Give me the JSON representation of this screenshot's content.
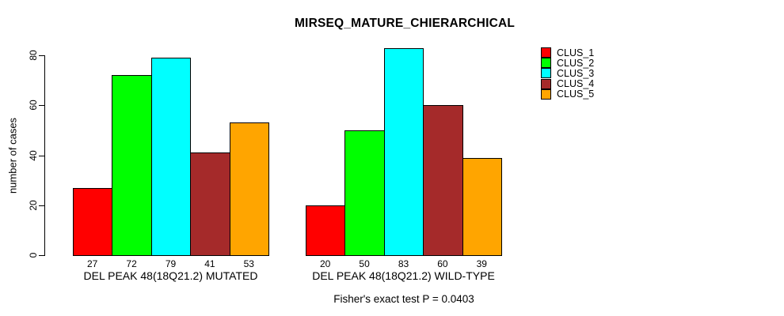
{
  "chart_data": {
    "type": "bar",
    "title": "MIRSEQ_MATURE_CHIERARCHICAL",
    "ylabel": "number of cases",
    "xlabel": "",
    "ylim": [
      0,
      80
    ],
    "yticks": [
      0,
      20,
      40,
      60,
      80
    ],
    "grid": false,
    "legend_position": "right",
    "bar_border_color": "#000000",
    "categories": [
      "DEL PEAK 48(18Q21.2) MUTATED",
      "DEL PEAK 48(18Q21.2) WILD-TYPE"
    ],
    "series": [
      {
        "name": "CLUS_1",
        "color": "#FF0000",
        "values": [
          27,
          20
        ]
      },
      {
        "name": "CLUS_2",
        "color": "#00FF00",
        "values": [
          72,
          50
        ]
      },
      {
        "name": "CLUS_3",
        "color": "#00FFFF",
        "values": [
          79,
          83
        ]
      },
      {
        "name": "CLUS_4",
        "color": "#A52A2A",
        "values": [
          41,
          60
        ]
      },
      {
        "name": "CLUS_5",
        "color": "#FFA500",
        "values": [
          53,
          39
        ]
      }
    ],
    "show_value_labels": true,
    "annotation": "Fisher's exact test P = 0.0403"
  }
}
